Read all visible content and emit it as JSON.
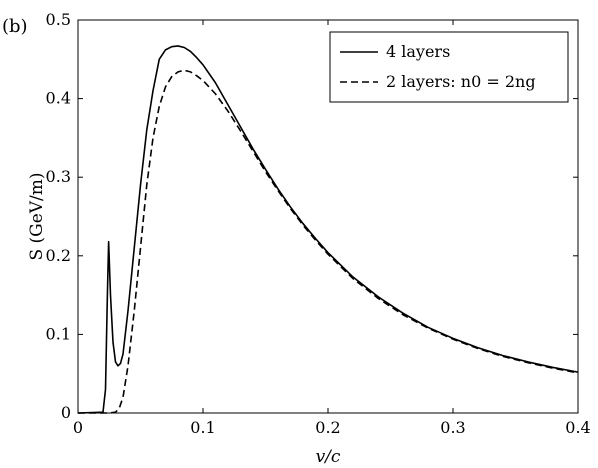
{
  "panel_label": "(b)",
  "chart_data": {
    "type": "line",
    "xlabel": "v/c",
    "ylabel": "S (GeV/m)",
    "xlim": [
      0,
      0.4
    ],
    "ylim": [
      0,
      0.5
    ],
    "xticks": [
      0,
      0.1,
      0.2,
      0.3,
      0.4
    ],
    "yticks": [
      0,
      0.1,
      0.2,
      0.3,
      0.4,
      0.5
    ],
    "xtick_labels": [
      "0",
      "0.1",
      "0.2",
      "0.3",
      "0.4"
    ],
    "ytick_labels": [
      "0",
      "0.1",
      "0.2",
      "0.3",
      "0.4",
      "0.5"
    ],
    "grid": false,
    "legend_position": "top-right",
    "series": [
      {
        "name": "4 layers",
        "style": "solid",
        "color": "#000000",
        "x": [
          0.0,
          0.02,
          0.022,
          0.0235,
          0.0245,
          0.026,
          0.028,
          0.03,
          0.032,
          0.034,
          0.036,
          0.04,
          0.045,
          0.05,
          0.055,
          0.06,
          0.065,
          0.07,
          0.075,
          0.08,
          0.085,
          0.09,
          0.095,
          0.1,
          0.11,
          0.12,
          0.13,
          0.14,
          0.15,
          0.16,
          0.17,
          0.18,
          0.19,
          0.2,
          0.22,
          0.24,
          0.26,
          0.28,
          0.3,
          0.32,
          0.34,
          0.36,
          0.38,
          0.4
        ],
        "y": [
          0.0,
          0.001,
          0.03,
          0.15,
          0.218,
          0.15,
          0.09,
          0.065,
          0.06,
          0.063,
          0.075,
          0.13,
          0.21,
          0.29,
          0.36,
          0.41,
          0.45,
          0.462,
          0.466,
          0.467,
          0.465,
          0.46,
          0.452,
          0.443,
          0.42,
          0.392,
          0.364,
          0.336,
          0.31,
          0.285,
          0.262,
          0.241,
          0.222,
          0.204,
          0.173,
          0.148,
          0.127,
          0.109,
          0.095,
          0.083,
          0.073,
          0.065,
          0.058,
          0.052
        ]
      },
      {
        "name": "2 layers: n0 = 2ng",
        "style": "dashed",
        "color": "#000000",
        "x": [
          0.0,
          0.025,
          0.03,
          0.033,
          0.036,
          0.04,
          0.045,
          0.05,
          0.055,
          0.06,
          0.065,
          0.07,
          0.075,
          0.08,
          0.085,
          0.09,
          0.095,
          0.1,
          0.11,
          0.12,
          0.13,
          0.14,
          0.15,
          0.16,
          0.17,
          0.18,
          0.19,
          0.2,
          0.22,
          0.24,
          0.26,
          0.28,
          0.3,
          0.32,
          0.34,
          0.36,
          0.38,
          0.4
        ],
        "y": [
          0.0,
          0.0,
          0.001,
          0.006,
          0.02,
          0.06,
          0.13,
          0.21,
          0.29,
          0.35,
          0.39,
          0.415,
          0.428,
          0.434,
          0.436,
          0.434,
          0.429,
          0.423,
          0.406,
          0.384,
          0.359,
          0.333,
          0.307,
          0.283,
          0.26,
          0.239,
          0.22,
          0.202,
          0.171,
          0.146,
          0.125,
          0.108,
          0.094,
          0.082,
          0.072,
          0.064,
          0.057,
          0.051
        ]
      }
    ]
  }
}
